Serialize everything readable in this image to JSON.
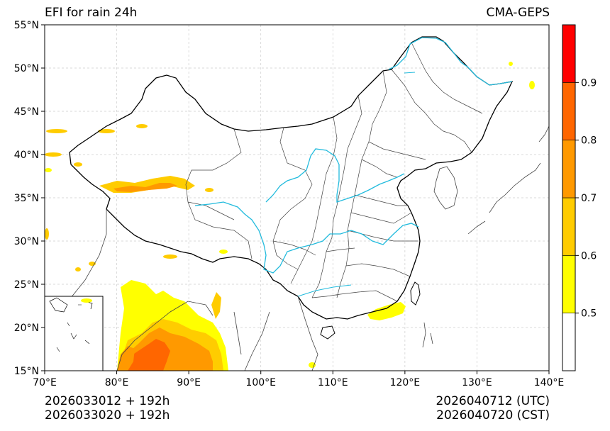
{
  "title_left": "EFI for rain 24h",
  "title_right": "CMA-GEPS",
  "init_utc": "2026033012 + 192h",
  "init_cst": "2026033020 + 192h",
  "valid_utc": "2026040712 (UTC)",
  "valid_cst": "2026040720 (CST)",
  "lat_ticks": [
    {
      "deg": 55,
      "label": "55°N"
    },
    {
      "deg": 50,
      "label": "50°N"
    },
    {
      "deg": 45,
      "label": "45°N"
    },
    {
      "deg": 40,
      "label": "40°N"
    },
    {
      "deg": 35,
      "label": "35°N"
    },
    {
      "deg": 30,
      "label": "30°N"
    },
    {
      "deg": 25,
      "label": "25°N"
    },
    {
      "deg": 20,
      "label": "20°N"
    },
    {
      "deg": 15,
      "label": "15°N"
    }
  ],
  "lon_ticks": [
    {
      "deg": 70,
      "label": "70°E"
    },
    {
      "deg": 80,
      "label": "80°E"
    },
    {
      "deg": 90,
      "label": "90°E"
    },
    {
      "deg": 100,
      "label": "100°E"
    },
    {
      "deg": 110,
      "label": "110°E"
    },
    {
      "deg": 120,
      "label": "120°E"
    },
    {
      "deg": 130,
      "label": "130°E"
    },
    {
      "deg": 140,
      "label": "140°E"
    }
  ],
  "colorbar": {
    "min": 0.4,
    "max": 1.0,
    "bins": [
      {
        "from": 0.4,
        "to": 0.5,
        "color": "#ffffff"
      },
      {
        "from": 0.5,
        "to": 0.6,
        "color": "#ffff00"
      },
      {
        "from": 0.6,
        "to": 0.7,
        "color": "#ffcc00"
      },
      {
        "from": 0.7,
        "to": 0.8,
        "color": "#ff9900"
      },
      {
        "from": 0.8,
        "to": 0.9,
        "color": "#ff6600"
      },
      {
        "from": 0.9,
        "to": 1.0,
        "color": "#ff0000"
      }
    ],
    "ticks": [
      {
        "value": 0.5,
        "label": "0.5"
      },
      {
        "value": 0.6,
        "label": "0.6"
      },
      {
        "value": 0.7,
        "label": "0.7"
      },
      {
        "value": 0.8,
        "label": "0.8"
      },
      {
        "value": 0.9,
        "label": "0.9"
      }
    ]
  },
  "colors": {
    "border": "#000000",
    "province": "#444444",
    "river": "#22bbdd",
    "grid": "#cccccc"
  }
}
